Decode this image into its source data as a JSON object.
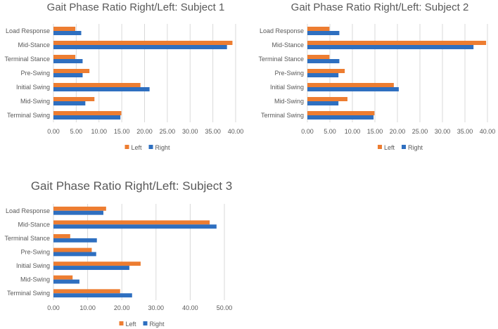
{
  "colors": {
    "left": "#ED7D31",
    "right": "#2E6FC0",
    "grid": "#D9D9D9"
  },
  "chart_data": [
    {
      "type": "bar",
      "orientation": "horizontal",
      "title": "Gait Phase Ratio Right/Left: Subject 1",
      "categories": [
        "Load Response",
        "Mid-Stance",
        "Terminal Stance",
        "Pre-Swing",
        "Initial Swing",
        "Mid-Swing",
        "Terminal Swing"
      ],
      "series": [
        {
          "name": "Left",
          "values": [
            4.8,
            39.3,
            4.8,
            7.9,
            19.1,
            9.0,
            14.9
          ]
        },
        {
          "name": "Right",
          "values": [
            6.1,
            38.1,
            6.4,
            6.4,
            21.1,
            7.0,
            14.7
          ]
        }
      ],
      "xlim": [
        0,
        40
      ],
      "ticks": [
        "0.00",
        "5.00",
        "10.00",
        "15.00",
        "20.00",
        "25.00",
        "30.00",
        "35.00",
        "40.00"
      ],
      "tick_values": [
        0,
        5,
        10,
        15,
        20,
        25,
        30,
        35,
        40
      ],
      "grid": true,
      "legend": "bottom"
    },
    {
      "type": "bar",
      "orientation": "horizontal",
      "title": "Gait Phase Ratio Right/Left: Subject 2",
      "categories": [
        "Load Response",
        "Mid-Stance",
        "Terminal Stance",
        "Pre-Swing",
        "Initial Swing",
        "Mid-Swing",
        "Terminal Swing"
      ],
      "series": [
        {
          "name": "Left",
          "values": [
            4.9,
            39.7,
            4.9,
            8.3,
            19.2,
            8.9,
            14.9
          ]
        },
        {
          "name": "Right",
          "values": [
            7.1,
            36.9,
            7.1,
            6.9,
            20.3,
            6.9,
            14.7
          ]
        }
      ],
      "xlim": [
        0,
        40
      ],
      "ticks": [
        "0.00",
        "5.00",
        "10.00",
        "15.00",
        "20.00",
        "25.00",
        "30.00",
        "35.00",
        "40.00"
      ],
      "tick_values": [
        0,
        5,
        10,
        15,
        20,
        25,
        30,
        35,
        40
      ],
      "grid": true,
      "legend": "bottom"
    },
    {
      "type": "bar",
      "orientation": "horizontal",
      "title": "Gait Phase Ratio Right/Left: Subject 3",
      "categories": [
        "Load Response",
        "Mid-Stance",
        "Terminal Stance",
        "Pre-Swing",
        "Initial Swing",
        "Mid-Swing",
        "Terminal Swing"
      ],
      "series": [
        {
          "name": "Left",
          "values": [
            15.4,
            45.7,
            4.9,
            11.2,
            25.5,
            5.6,
            19.5
          ]
        },
        {
          "name": "Right",
          "values": [
            14.6,
            47.7,
            12.7,
            12.5,
            22.2,
            7.6,
            23.0
          ]
        }
      ],
      "xlim": [
        0,
        50
      ],
      "ticks": [
        "0.00",
        "10.00",
        "20.00",
        "30.00",
        "40.00",
        "50.00"
      ],
      "tick_values": [
        0,
        10,
        20,
        30,
        40,
        50
      ],
      "grid": true,
      "legend": "bottom"
    }
  ]
}
